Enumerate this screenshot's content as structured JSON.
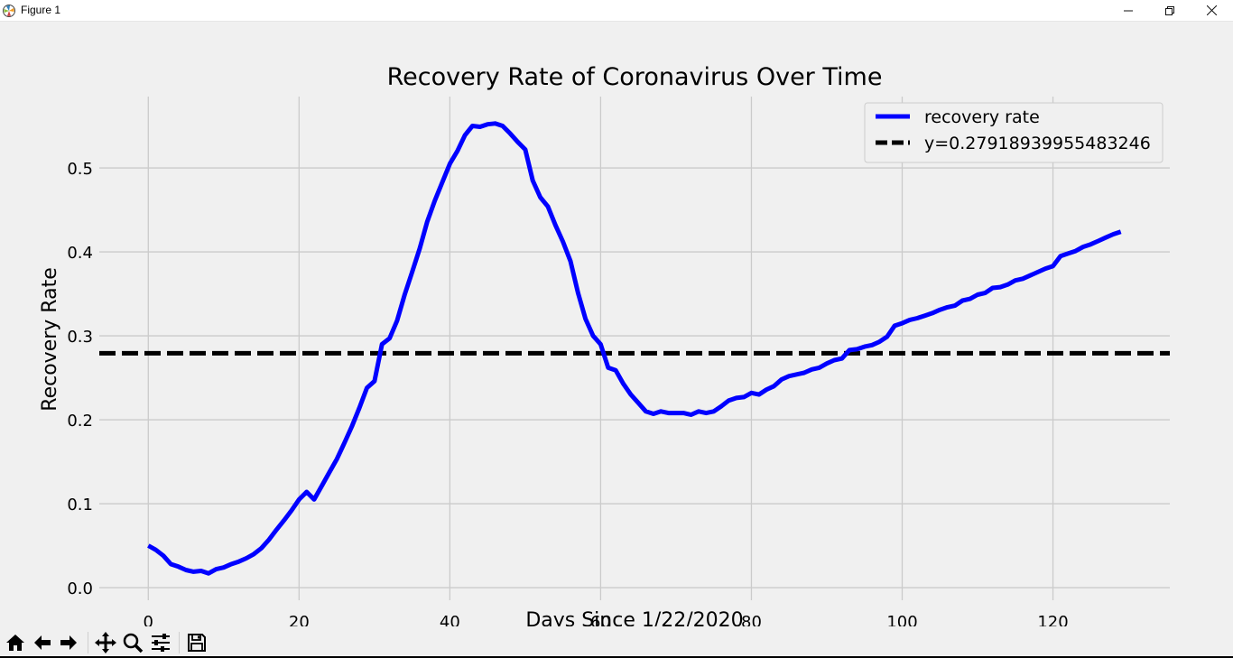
{
  "window": {
    "title": "Figure 1",
    "minimize_icon": "minimize-icon",
    "maximize_icon": "restore-icon",
    "close_icon": "close-icon"
  },
  "toolbar": {
    "items": [
      {
        "name": "home-button",
        "icon": "home-icon"
      },
      {
        "name": "back-button",
        "icon": "arrow-left-icon"
      },
      {
        "name": "forward-button",
        "icon": "arrow-right-icon"
      },
      {
        "name": "pan-button",
        "icon": "move-icon"
      },
      {
        "name": "zoom-button",
        "icon": "magnifier-icon"
      },
      {
        "name": "configure-subplots-button",
        "icon": "sliders-icon"
      },
      {
        "name": "save-button",
        "icon": "floppy-disk-icon"
      }
    ]
  },
  "chart_data": {
    "type": "line",
    "title": "Recovery Rate of Coronavirus Over Time",
    "xlabel": "Days Since 1/22/2020",
    "ylabel": "Recovery Rate",
    "xlim": [
      -6.5,
      135.5
    ],
    "ylim": [
      -0.015,
      0.585
    ],
    "xticks": [
      0,
      20,
      40,
      60,
      80,
      100,
      120
    ],
    "xtick_labels": [
      "0",
      "20",
      "40",
      "60",
      "80",
      "100",
      "120"
    ],
    "yticks": [
      0.0,
      0.1,
      0.2,
      0.3,
      0.4,
      0.5
    ],
    "ytick_labels": [
      "0.0",
      "0.1",
      "0.2",
      "0.3",
      "0.4",
      "0.5"
    ],
    "grid": true,
    "legend": "top-right",
    "colors": {
      "recovery": "#0000ff",
      "mean": "#000000",
      "grid": "#cbcbcb",
      "background": "#f0f0f0"
    },
    "series": [
      {
        "name": "recovery rate",
        "style": "solid",
        "x": [
          0,
          1,
          2,
          3,
          4,
          5,
          6,
          7,
          8,
          9,
          10,
          11,
          12,
          13,
          14,
          15,
          16,
          17,
          18,
          19,
          20,
          21,
          22,
          23,
          24,
          25,
          26,
          27,
          28,
          29,
          30,
          31,
          32,
          33,
          34,
          35,
          36,
          37,
          38,
          39,
          40,
          41,
          42,
          43,
          44,
          45,
          46,
          47,
          48,
          49,
          50,
          51,
          52,
          53,
          54,
          55,
          56,
          57,
          58,
          59,
          60,
          61,
          62,
          63,
          64,
          65,
          66,
          67,
          68,
          69,
          70,
          71,
          72,
          73,
          74,
          75,
          76,
          77,
          78,
          79,
          80,
          81,
          82,
          83,
          84,
          85,
          86,
          87,
          88,
          89,
          90,
          91,
          92,
          93,
          94,
          95,
          96,
          97,
          98,
          99,
          100,
          101,
          102,
          103,
          104,
          105,
          106,
          107,
          108,
          109,
          110,
          111,
          112,
          113,
          114,
          115,
          116,
          117,
          118,
          119,
          120,
          121,
          122,
          123,
          124,
          125,
          126,
          127,
          128,
          129
        ],
        "y": [
          0.05,
          0.045,
          0.038,
          0.028,
          0.025,
          0.021,
          0.019,
          0.02,
          0.017,
          0.022,
          0.024,
          0.028,
          0.031,
          0.035,
          0.04,
          0.047,
          0.057,
          0.069,
          0.08,
          0.092,
          0.105,
          0.114,
          0.105,
          0.121,
          0.137,
          0.153,
          0.172,
          0.192,
          0.214,
          0.238,
          0.246,
          0.29,
          0.297,
          0.318,
          0.349,
          0.376,
          0.404,
          0.436,
          0.461,
          0.483,
          0.505,
          0.52,
          0.539,
          0.55,
          0.549,
          0.552,
          0.553,
          0.55,
          0.541,
          0.531,
          0.522,
          0.485,
          0.465,
          0.454,
          0.432,
          0.412,
          0.389,
          0.351,
          0.32,
          0.3,
          0.29,
          0.262,
          0.259,
          0.243,
          0.23,
          0.22,
          0.21,
          0.207,
          0.21,
          0.208,
          0.208,
          0.208,
          0.206,
          0.21,
          0.208,
          0.21,
          0.216,
          0.223,
          0.226,
          0.227,
          0.232,
          0.23,
          0.236,
          0.24,
          0.248,
          0.252,
          0.254,
          0.256,
          0.26,
          0.262,
          0.267,
          0.271,
          0.273,
          0.283,
          0.284,
          0.287,
          0.289,
          0.293,
          0.299,
          0.312,
          0.315,
          0.319,
          0.321,
          0.324,
          0.327,
          0.331,
          0.334,
          0.336,
          0.342,
          0.344,
          0.349,
          0.351,
          0.357,
          0.358,
          0.361,
          0.366,
          0.368,
          0.372,
          0.376,
          0.38,
          0.383,
          0.395,
          0.398,
          0.401,
          0.406,
          0.409,
          0.413,
          0.417,
          0.421,
          0.424
        ]
      },
      {
        "name": "y=0.27918939955483246",
        "style": "dashed",
        "y_constant": 0.27918939955483246
      }
    ]
  }
}
